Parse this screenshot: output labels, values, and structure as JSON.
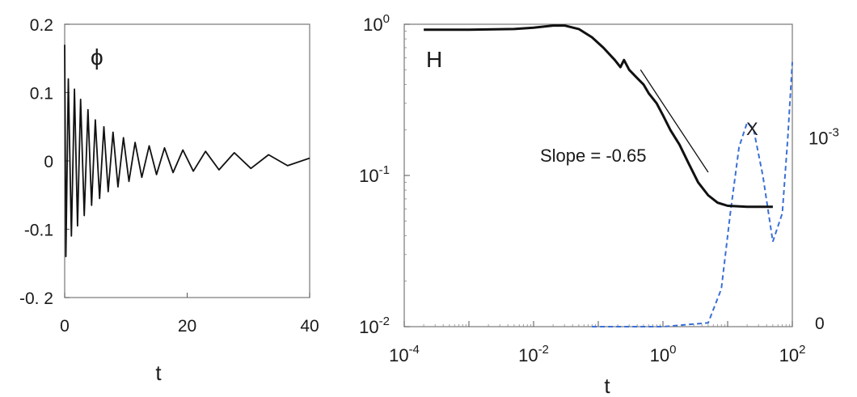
{
  "chart_data": [
    {
      "type": "line",
      "panel_label": "ϕ",
      "xlabel": "t",
      "ylabel": "",
      "xlim": [
        0,
        40
      ],
      "ylim": [
        -0.2,
        0.2
      ],
      "x_ticks": [
        0,
        20,
        40
      ],
      "y_ticks": [
        {
          "value": 0.2,
          "label": "0.2"
        },
        {
          "value": 0.1,
          "label": "0.1"
        },
        {
          "value": 0,
          "label": "0"
        },
        {
          "value": -0.1,
          "label": "-0.1"
        },
        {
          "value": -0.2,
          "label": "-0. 2"
        }
      ],
      "grid": false,
      "series": [
        {
          "color": "#111111",
          "style": "solid",
          "points": [
            [
              0.0,
              0.17
            ],
            [
              0.2,
              -0.14
            ],
            [
              0.6,
              0.12
            ],
            [
              1.1,
              -0.11
            ],
            [
              1.6,
              0.105
            ],
            [
              2.1,
              -0.095
            ],
            [
              2.6,
              0.09
            ],
            [
              3.2,
              -0.08
            ],
            [
              3.8,
              0.075
            ],
            [
              4.4,
              -0.065
            ],
            [
              5.0,
              0.06
            ],
            [
              5.7,
              -0.055
            ],
            [
              6.4,
              0.05
            ],
            [
              7.1,
              -0.045
            ],
            [
              7.9,
              0.042
            ],
            [
              8.7,
              -0.038
            ],
            [
              9.6,
              0.034
            ],
            [
              10.5,
              -0.03
            ],
            [
              11.5,
              0.027
            ],
            [
              12.6,
              -0.024
            ],
            [
              13.8,
              0.022
            ],
            [
              15.0,
              -0.02
            ],
            [
              16.3,
              0.019
            ],
            [
              17.7,
              -0.017
            ],
            [
              19.3,
              0.016
            ],
            [
              21.0,
              -0.015
            ],
            [
              23.0,
              0.014
            ],
            [
              25.2,
              -0.013
            ],
            [
              27.7,
              0.012
            ],
            [
              30.4,
              -0.011
            ],
            [
              33.3,
              0.009
            ],
            [
              36.4,
              -0.007
            ],
            [
              40.0,
              0.004
            ]
          ]
        }
      ]
    },
    {
      "type": "line",
      "panel_label": "H",
      "xlabel": "t",
      "ylabel": "",
      "xscale": "log",
      "yscale": "log",
      "xlim": [
        0.0001,
        100
      ],
      "ylim": [
        0.01,
        1
      ],
      "x_ticks": [
        {
          "base": "10",
          "exp": "-4",
          "value": 0.0001
        },
        {
          "base": "10",
          "exp": "-2",
          "value": 0.01
        },
        {
          "base": "10",
          "exp": "0",
          "value": 1
        },
        {
          "base": "10",
          "exp": "2",
          "value": 100
        }
      ],
      "y_ticks": [
        {
          "base": "10",
          "exp": "0",
          "value": 1
        },
        {
          "base": "10",
          "exp": "-1",
          "value": 0.1
        },
        {
          "base": "10",
          "exp": "-2",
          "value": 0.01
        }
      ],
      "y2_ticks": [
        {
          "base": "10",
          "exp": "-3",
          "value": 0.001
        },
        {
          "text": "0",
          "value": 0
        }
      ],
      "y2lim": [
        0,
        0.0016
      ],
      "grid": false,
      "series": [
        {
          "name": "H",
          "color": "#111111",
          "style": "solid",
          "axis": "left",
          "points": [
            [
              0.0002,
              0.92
            ],
            [
              0.001,
              0.92
            ],
            [
              0.005,
              0.93
            ],
            [
              0.01,
              0.95
            ],
            [
              0.02,
              0.98
            ],
            [
              0.03,
              0.98
            ],
            [
              0.05,
              0.93
            ],
            [
              0.08,
              0.82
            ],
            [
              0.12,
              0.7
            ],
            [
              0.18,
              0.58
            ],
            [
              0.22,
              0.52
            ],
            [
              0.25,
              0.58
            ],
            [
              0.3,
              0.5
            ],
            [
              0.4,
              0.44
            ],
            [
              0.5,
              0.4
            ],
            [
              0.6,
              0.35
            ],
            [
              0.8,
              0.3
            ],
            [
              1.0,
              0.25
            ],
            [
              1.3,
              0.2
            ],
            [
              1.8,
              0.16
            ],
            [
              2.5,
              0.12
            ],
            [
              3.5,
              0.09
            ],
            [
              5.0,
              0.074
            ],
            [
              7.0,
              0.066
            ],
            [
              10.0,
              0.063
            ],
            [
              20.0,
              0.062
            ],
            [
              50.0,
              0.062
            ]
          ]
        },
        {
          "name": "X",
          "color": "#3a6fd8",
          "style": "dashed",
          "axis": "right",
          "points": [
            [
              0.08,
              0.0
            ],
            [
              1.0,
              0.0
            ],
            [
              5.0,
              2e-05
            ],
            [
              8.0,
              0.0002
            ],
            [
              11.0,
              0.0006
            ],
            [
              15.0,
              0.00095
            ],
            [
              20.0,
              0.00108
            ],
            [
              25.0,
              0.00105
            ],
            [
              35.0,
              0.0008
            ],
            [
              50.0,
              0.00045
            ],
            [
              70.0,
              0.0006
            ],
            [
              85.0,
              0.001
            ],
            [
              100.0,
              0.0014
            ]
          ]
        }
      ],
      "annotations": [
        {
          "text": "Slope = -0.65",
          "type": "reference_line",
          "slope": -0.65,
          "from": [
            0.45,
            0.5
          ],
          "to": [
            5.0,
            0.105
          ]
        },
        {
          "text": "X",
          "near_series": "X"
        }
      ]
    }
  ]
}
